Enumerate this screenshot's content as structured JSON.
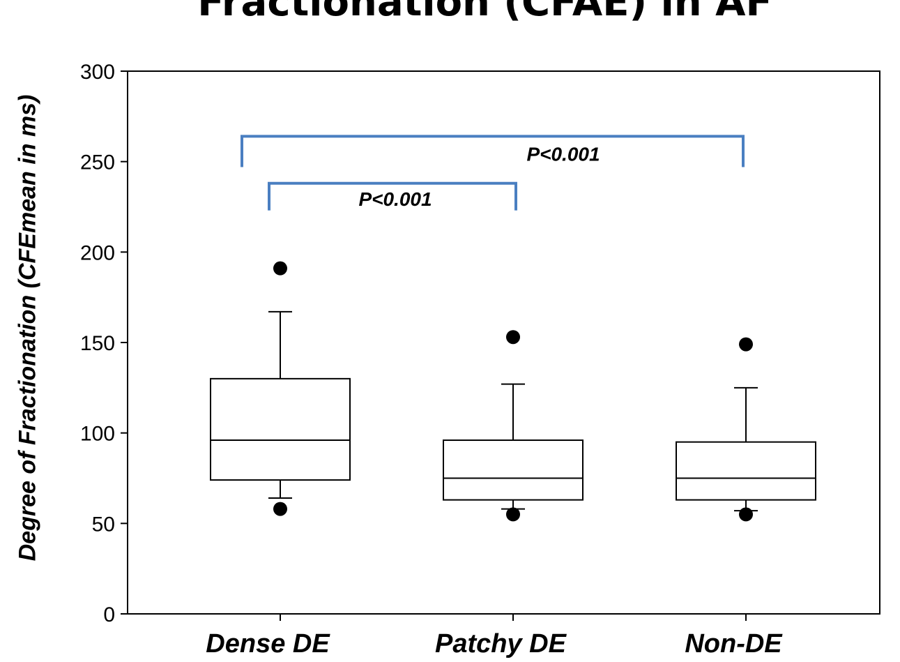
{
  "chart_data": {
    "type": "box",
    "title": "Fractionation (CFAE) in AF",
    "ylabel": "Degree of Fractionation (CFEmean in ms)",
    "xlabel": "",
    "ylim": [
      0,
      300
    ],
    "yticks": [
      0,
      50,
      100,
      150,
      200,
      250,
      300
    ],
    "grid": false,
    "categories": [
      "Dense DE",
      "Patchy DE",
      "Non-DE"
    ],
    "boxes": [
      {
        "category": "Dense DE",
        "whisker_low": 64,
        "q1": 74,
        "median": 96,
        "q3": 130,
        "whisker_high": 167,
        "outliers": [
          58,
          191
        ]
      },
      {
        "category": "Patchy DE",
        "whisker_low": 58,
        "q1": 63,
        "median": 75,
        "q3": 96,
        "whisker_high": 127,
        "outliers": [
          55,
          153
        ]
      },
      {
        "category": "Non-DE",
        "whisker_low": 57,
        "q1": 63,
        "median": 75,
        "q3": 95,
        "whisker_high": 125,
        "outliers": [
          55,
          149
        ]
      }
    ],
    "annotations": [
      {
        "label": "P<0.001",
        "from": "Dense DE",
        "to": "Patchy DE",
        "bracket_y": 238
      },
      {
        "label": "P<0.001",
        "from": "Dense DE",
        "to": "Non-DE",
        "bracket_y": 264
      }
    ],
    "bracket_color": "#4a7fc1"
  }
}
